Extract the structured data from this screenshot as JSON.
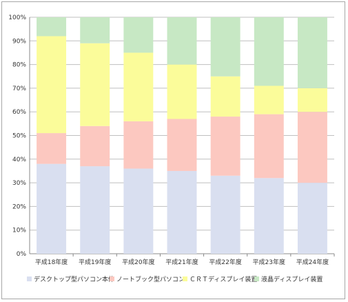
{
  "chart_data": {
    "type": "bar",
    "stacked": true,
    "percent": true,
    "title": "",
    "xlabel": "",
    "ylabel": "",
    "ylim": [
      0,
      100
    ],
    "y_ticks": [
      "0%",
      "10%",
      "20%",
      "30%",
      "40%",
      "50%",
      "60%",
      "70%",
      "80%",
      "90%",
      "100%"
    ],
    "grid": "horizontal",
    "legend_position": "bottom",
    "categories": [
      "平成18年度",
      "平成19年度",
      "平成20年度",
      "平成21年度",
      "平成22年度",
      "平成23年度",
      "平成24年度"
    ],
    "series": [
      {
        "name": "デスクトップ型パソコン本体",
        "color": "#d9dff0",
        "values": [
          38,
          37,
          36,
          35,
          33,
          32,
          30
        ]
      },
      {
        "name": "ノートブック型パソコン",
        "color": "#fcc8c0",
        "values": [
          13,
          17,
          20,
          22,
          25,
          27,
          30
        ]
      },
      {
        "name": "ＣＲＴディスプレイ装置",
        "color": "#fbfc9a",
        "values": [
          41,
          35,
          29,
          23,
          17,
          12,
          10
        ]
      },
      {
        "name": "液晶ディスプレイ装置",
        "color": "#c7e8c4",
        "values": [
          8,
          11,
          15,
          20,
          25,
          29,
          30
        ]
      }
    ]
  }
}
